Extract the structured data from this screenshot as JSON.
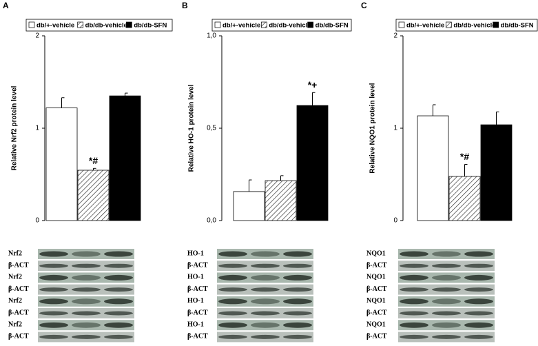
{
  "chart_data": [
    {
      "type": "bar",
      "panel_label": "A",
      "y_label": "Relative Nrf2 protein level",
      "series": [
        {
          "name": "db/+-vehicle",
          "color": "#ffffff",
          "values": [
            1.22
          ],
          "errors": [
            0.11
          ]
        },
        {
          "name": "db/db-vehicle",
          "color": "#ffffff",
          "hatch": true,
          "values": [
            0.545
          ],
          "errors": [
            0.02
          ],
          "annotation": "*#"
        },
        {
          "name": "db/db-SFN",
          "color": "#000000",
          "values": [
            1.35
          ],
          "errors": [
            0.03
          ]
        }
      ],
      "ylim": [
        0,
        2
      ],
      "yticks": [
        0,
        1,
        2
      ],
      "blot_labels": [
        "Nrf2",
        "β-ACT",
        "Nrf2",
        "β-ACT",
        "Nrf2",
        "β-ACT",
        "Nrf2",
        "β-ACT"
      ]
    },
    {
      "type": "bar",
      "panel_label": "B",
      "y_label": "Relative HO-1 protein level",
      "series": [
        {
          "name": "db/+-vehicle",
          "color": "#ffffff",
          "values": [
            0.157
          ],
          "errors": [
            0.063
          ]
        },
        {
          "name": "db/db-vehicle",
          "color": "#ffffff",
          "hatch": true,
          "values": [
            0.216
          ],
          "errors": [
            0.027
          ]
        },
        {
          "name": "db/db-SFN",
          "color": "#000000",
          "values": [
            0.623
          ],
          "errors": [
            0.07
          ],
          "annotation": "*+"
        }
      ],
      "ylim": [
        0,
        1
      ],
      "yticks": [
        {
          "value": 0,
          "label": "0,0"
        },
        {
          "value": 0.5,
          "label": "0,5"
        },
        {
          "value": 1,
          "label": "1,0"
        }
      ],
      "blot_labels": [
        "HO-1",
        "β-ACT",
        "HO-1",
        "β-ACT",
        "HO-1",
        "β-ACT",
        "HO-1",
        "β-ACT"
      ]
    },
    {
      "type": "bar",
      "panel_label": "C",
      "y_label": "Relative NQO1 protein level",
      "series": [
        {
          "name": "db/+-vehicle",
          "color": "#ffffff",
          "values": [
            1.134
          ],
          "errors": [
            0.12
          ]
        },
        {
          "name": "db/db-vehicle",
          "color": "#ffffff",
          "hatch": true,
          "values": [
            0.478
          ],
          "errors": [
            0.13
          ],
          "annotation": "*#"
        },
        {
          "name": "db/db-SFN",
          "color": "#000000",
          "values": [
            1.037
          ],
          "errors": [
            0.14
          ]
        }
      ],
      "ylim": [
        0,
        2
      ],
      "yticks": [
        0,
        1,
        2
      ],
      "blot_labels": [
        "NQO1",
        "β-ACT",
        "NQO1",
        "β-ACT",
        "NQO1",
        "β-ACT",
        "NQO1",
        "β-ACT"
      ]
    }
  ]
}
